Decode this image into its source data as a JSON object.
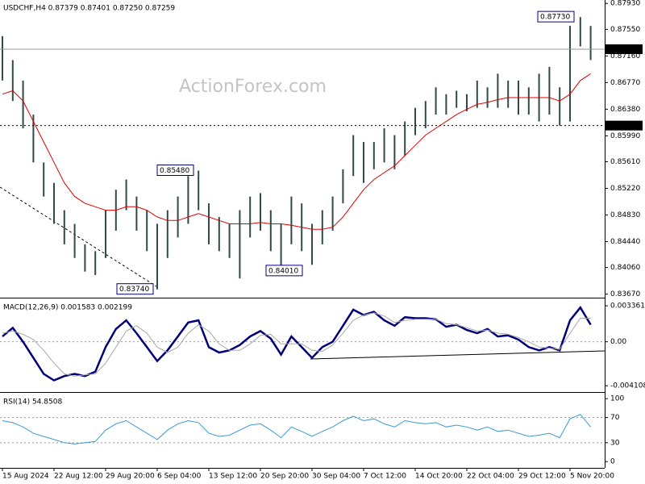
{
  "chart_data": [
    {
      "type": "ohlc",
      "title": "USDCHF,H4  0.87379 0.87401 0.87250 0.87259",
      "watermark": "ActionForex.com",
      "categories": [
        "15 Aug 2024",
        null,
        null,
        null,
        null,
        "22 Aug 12:00",
        null,
        null,
        null,
        null,
        "29 Aug 20:00",
        null,
        null,
        null,
        null,
        "6 Sep 04:00",
        null,
        null,
        null,
        null,
        "13 Sep 12:00",
        null,
        null,
        null,
        null,
        "20 Sep 20:00",
        null,
        null,
        null,
        null,
        "30 Sep 04:00",
        null,
        null,
        null,
        null,
        "7 Oct 12:00",
        null,
        null,
        null,
        null,
        "14 Oct 20:00",
        null,
        null,
        null,
        null,
        "22 Oct 04:00",
        null,
        null,
        null,
        null,
        "29 Oct 12:00",
        null,
        null,
        null,
        null,
        "5 Nov 20:00",
        null,
        null
      ],
      "high": [
        0.8745,
        0.871,
        0.868,
        0.863,
        0.856,
        0.853,
        0.849,
        0.847,
        0.844,
        0.843,
        0.849,
        0.852,
        0.8535,
        0.851,
        0.849,
        0.847,
        0.849,
        0.851,
        0.854,
        0.8548,
        0.85,
        0.848,
        0.847,
        0.849,
        0.851,
        0.8515,
        0.849,
        0.847,
        0.851,
        0.85,
        0.847,
        0.849,
        0.851,
        0.855,
        0.86,
        0.859,
        0.859,
        0.861,
        0.86,
        0.862,
        0.864,
        0.865,
        0.867,
        0.866,
        0.8665,
        0.866,
        0.868,
        0.867,
        0.869,
        0.868,
        0.868,
        0.867,
        0.869,
        0.87,
        0.867,
        0.876,
        0.8773,
        0.876
      ],
      "low": [
        0.868,
        0.865,
        0.861,
        0.856,
        0.851,
        0.847,
        0.844,
        0.842,
        0.84,
        0.8395,
        0.842,
        0.846,
        0.849,
        0.846,
        0.843,
        0.8374,
        0.842,
        0.845,
        0.847,
        0.849,
        0.844,
        0.843,
        0.842,
        0.839,
        0.845,
        0.846,
        0.843,
        0.8401,
        0.844,
        0.843,
        0.841,
        0.844,
        0.846,
        0.85,
        0.854,
        0.853,
        0.855,
        0.856,
        0.855,
        0.857,
        0.86,
        0.861,
        0.863,
        0.863,
        0.864,
        0.8635,
        0.864,
        0.864,
        0.864,
        0.864,
        0.863,
        0.863,
        0.862,
        0.863,
        0.8614,
        0.862,
        0.873,
        0.871
      ],
      "color": "#2e4a4a",
      "ma": {
        "color": "#e00000",
        "values": [
          0.866,
          0.8665,
          0.865,
          0.862,
          0.859,
          0.856,
          0.853,
          0.851,
          0.85,
          0.8495,
          0.849,
          0.849,
          0.8495,
          0.8495,
          0.849,
          0.848,
          0.8475,
          0.8475,
          0.848,
          0.8485,
          0.848,
          0.8475,
          0.847,
          0.847,
          0.847,
          0.8472,
          0.847,
          0.847,
          0.8468,
          0.8465,
          0.8462,
          0.8462,
          0.8465,
          0.848,
          0.85,
          0.852,
          0.8535,
          0.8545,
          0.8555,
          0.857,
          0.8585,
          0.86,
          0.861,
          0.862,
          0.863,
          0.8638,
          0.8645,
          0.8648,
          0.8652,
          0.8655,
          0.8655,
          0.8655,
          0.8655,
          0.8655,
          0.865,
          0.866,
          0.868,
          0.869
        ]
      },
      "ylim": [
        0.8363,
        0.8798
      ],
      "yticks": [
        {
          "value": 0.8793,
          "label": "0.87930"
        },
        {
          "value": 0.8755,
          "label": "0.87550"
        },
        {
          "value": 0.8716,
          "label": "0.87160"
        },
        {
          "value": 0.8677,
          "label": "0.86770"
        },
        {
          "value": 0.8638,
          "label": "0.86380"
        },
        {
          "value": 0.8599,
          "label": "0.85990"
        },
        {
          "value": 0.8561,
          "label": "0.85610"
        },
        {
          "value": 0.8522,
          "label": "0.85220"
        },
        {
          "value": 0.8483,
          "label": "0.84830"
        },
        {
          "value": 0.8444,
          "label": "0.84440"
        },
        {
          "value": 0.8406,
          "label": "0.84060"
        },
        {
          "value": 0.8367,
          "label": "0.83670"
        }
      ],
      "current_price": {
        "value": 0.87259,
        "label": "0.87259"
      },
      "support_level": {
        "value": 0.8614,
        "label": "0.86140"
      },
      "annotations": [
        {
          "value": 0.8773,
          "label": "0.87730"
        },
        {
          "value": 0.8548,
          "label": "0.85480"
        },
        {
          "value": 0.8401,
          "label": "0.84010"
        },
        {
          "value": 0.8374,
          "label": "0.83740"
        }
      ]
    },
    {
      "type": "line",
      "title": "MACD(12,26,9) 0.001583 0.002199",
      "series": [
        {
          "color": "#00007a",
          "values": [
            0.0005,
            0.0013,
            0.0,
            -0.0015,
            -0.003,
            -0.0036,
            -0.0032,
            -0.003,
            -0.0032,
            -0.0028,
            -0.0005,
            0.0012,
            0.002,
            0.0008,
            -0.0005,
            -0.0018,
            -0.0008,
            0.0005,
            0.0018,
            0.002,
            -0.0005,
            -0.001,
            -0.0008,
            -0.0003,
            0.0005,
            0.001,
            0.0003,
            -0.0012,
            0.0005,
            -0.0005,
            -0.0015,
            -0.0005,
            0.0,
            0.0015,
            0.003,
            0.0025,
            0.0028,
            0.002,
            0.0015,
            0.0023,
            0.0022,
            0.0022,
            0.0021,
            0.0014,
            0.0016,
            0.0011,
            0.0008,
            0.0012,
            0.0005,
            0.0006,
            0.0002,
            -0.0005,
            -0.0008,
            -0.0005,
            -0.0008,
            0.002,
            0.0032,
            0.0016
          ]
        },
        {
          "color": "#a8a8a8",
          "values": [
            0.0008,
            0.001,
            0.0007,
            0.0002,
            -0.0008,
            -0.002,
            -0.003,
            -0.0032,
            -0.0031,
            -0.003,
            -0.002,
            -0.0005,
            0.001,
            0.0015,
            0.0008,
            -0.0005,
            -0.001,
            -0.0005,
            0.0008,
            0.0016,
            0.001,
            -0.0002,
            -0.0008,
            -0.0008,
            -0.0002,
            0.0006,
            0.0007,
            -0.0002,
            -0.0002,
            -0.0002,
            -0.0008,
            -0.0009,
            -0.0003,
            0.0008,
            0.002,
            0.0025,
            0.0027,
            0.0024,
            0.0018,
            0.002,
            0.0021,
            0.0021,
            0.0021,
            0.0017,
            0.0016,
            0.0013,
            0.001,
            0.0011,
            0.0008,
            0.0007,
            0.0004,
            0.0,
            -0.0005,
            -0.0006,
            -0.0007,
            0.0008,
            0.0022,
            0.0022
          ]
        }
      ],
      "ylim": [
        -0.00462,
        0.00397
      ],
      "yticks": [
        0.003361,
        {
          "value": 0,
          "label": "0.00"
        },
        -0.004108
      ],
      "levels": [
        0
      ]
    },
    {
      "type": "line",
      "title": "RSI(14) 54.8508",
      "series": [
        {
          "color": "#3a9ad0",
          "values": [
            65,
            62,
            55,
            45,
            40,
            35,
            30,
            28,
            30,
            32,
            50,
            60,
            65,
            55,
            45,
            35,
            50,
            60,
            65,
            62,
            45,
            40,
            42,
            50,
            58,
            60,
            50,
            38,
            55,
            48,
            40,
            48,
            55,
            65,
            72,
            65,
            68,
            60,
            55,
            65,
            62,
            60,
            62,
            55,
            58,
            55,
            50,
            55,
            48,
            50,
            45,
            40,
            42,
            45,
            38,
            68,
            75,
            55
          ]
        }
      ],
      "ylim": [
        -10,
        108
      ],
      "yticks": [
        100,
        70,
        30,
        0
      ],
      "levels": [
        70,
        30
      ]
    }
  ]
}
